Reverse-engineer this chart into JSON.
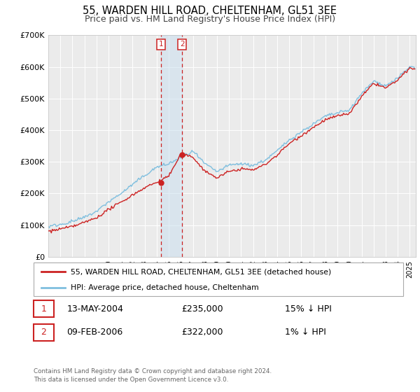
{
  "title": "55, WARDEN HILL ROAD, CHELTENHAM, GL51 3EE",
  "subtitle": "Price paid vs. HM Land Registry's House Price Index (HPI)",
  "ylim": [
    0,
    700000
  ],
  "yticks": [
    0,
    100000,
    200000,
    300000,
    400000,
    500000,
    600000,
    700000
  ],
  "ytick_labels": [
    "£0",
    "£100K",
    "£200K",
    "£300K",
    "£400K",
    "£500K",
    "£600K",
    "£700K"
  ],
  "xlim_start": 1995.0,
  "xlim_end": 2025.5,
  "background_color": "#ffffff",
  "plot_bg_color": "#ebebeb",
  "grid_color": "#ffffff",
  "hpi_color": "#7fbfdf",
  "price_color": "#cc2222",
  "transaction1_x": 2004.36,
  "transaction1_y": 235000,
  "transaction1_label": "1",
  "transaction2_x": 2006.11,
  "transaction2_y": 322000,
  "transaction2_label": "2",
  "legend_line1": "55, WARDEN HILL ROAD, CHELTENHAM, GL51 3EE (detached house)",
  "legend_line2": "HPI: Average price, detached house, Cheltenham",
  "table_row1_num": "1",
  "table_row1_date": "13-MAY-2004",
  "table_row1_price": "£235,000",
  "table_row1_hpi": "15% ↓ HPI",
  "table_row2_num": "2",
  "table_row2_date": "09-FEB-2006",
  "table_row2_price": "£322,000",
  "table_row2_hpi": "1% ↓ HPI",
  "footnote1": "Contains HM Land Registry data © Crown copyright and database right 2024.",
  "footnote2": "This data is licensed under the Open Government Licence v3.0.",
  "title_fontsize": 10.5,
  "subtitle_fontsize": 9,
  "axis_fontsize": 8,
  "shade_color": "#c8dff0",
  "shade_alpha": 0.5
}
